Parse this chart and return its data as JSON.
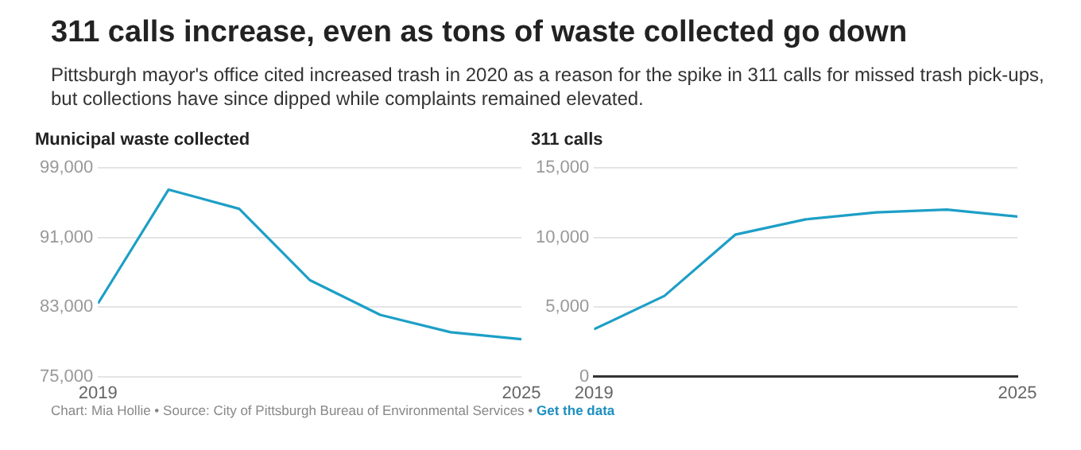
{
  "chart_data": [
    {
      "type": "line",
      "title": "311 calls increase, even as tons of waste collected go down",
      "subtitle": "Pittsburgh mayor's office cited increased trash in 2020 as a reason for the spike in 311 calls for missed trash pick-ups, but collections have since dipped while complaints remained elevated.",
      "ylabel": "Municipal waste collected",
      "x": [
        "2019",
        "2020",
        "2021",
        "2022",
        "2023",
        "2024",
        "2025"
      ],
      "series": [
        {
          "color": "#1d9fc6",
          "values": [
            83400,
            96500,
            94300,
            86100,
            82100,
            80100,
            79300
          ]
        }
      ],
      "xlim": [
        "2019",
        "2025"
      ],
      "xticks": [
        "2019",
        "2025"
      ],
      "ylim": [
        75000,
        99000
      ],
      "yticks": [
        {
          "value": 75000,
          "label": "75,000"
        },
        {
          "value": 83000,
          "label": "83,000"
        },
        {
          "value": 91000,
          "label": "91,000"
        },
        {
          "value": 99000,
          "label": "99,000"
        }
      ],
      "grid": "y",
      "legend": false,
      "marker": "none",
      "annotations": [
        "Chart: Mia Hollie •",
        "Source: City of Pittsburgh Bureau of Environmental Services •",
        "Get the data"
      ]
    },
    {
      "type": "line",
      "ylabel": "311 calls",
      "x": [
        "2019",
        "2020",
        "2021",
        "2022",
        "2023",
        "2024",
        "2025"
      ],
      "series": [
        {
          "color": "#1d9fc6",
          "values": [
            3400,
            5800,
            10200,
            11300,
            11800,
            12000,
            11500
          ]
        }
      ],
      "xlim": [
        "2019",
        "2025"
      ],
      "xticks": [
        "2019",
        "2025"
      ],
      "ylim": [
        0,
        15000
      ],
      "yticks": [
        0,
        {
          "value": 5000,
          "label": "5,000"
        },
        {
          "value": 10000,
          "label": "10,000"
        },
        {
          "value": 15000,
          "label": "15,000"
        }
      ],
      "grid": "y",
      "legend": false,
      "marker": "none"
    }
  ]
}
